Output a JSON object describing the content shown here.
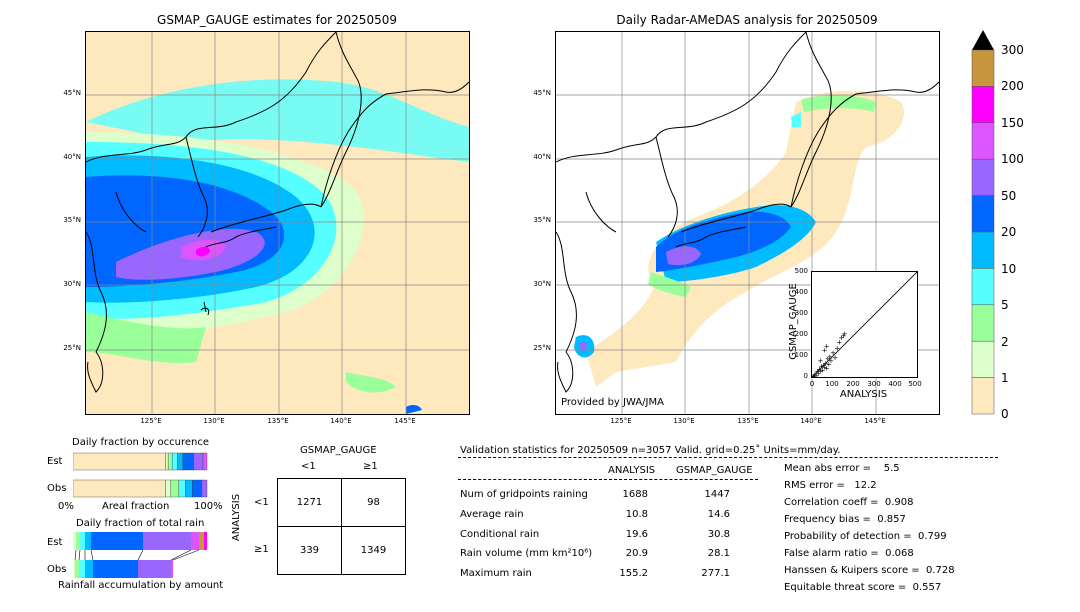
{
  "left_map": {
    "title": "GSMAP_GAUGE estimates for 20250509",
    "lat_labels": [
      "45°N",
      "40°N",
      "35°N",
      "30°N",
      "25°N"
    ],
    "lon_labels": [
      "125°E",
      "130°E",
      "135°E",
      "140°E",
      "145°E"
    ]
  },
  "right_map": {
    "title": "Daily Radar-AMeDAS analysis for 20250509",
    "lat_labels": [
      "45°N",
      "40°N",
      "35°N",
      "30°N",
      "25°N"
    ],
    "lon_labels": [
      "125°E",
      "130°E",
      "135°E",
      "140°E",
      "145°E"
    ],
    "credit": "Provided by JWA/JMA"
  },
  "colorbar": {
    "labels": [
      "300",
      "200",
      "150",
      "100",
      "50",
      "20",
      "10",
      "5",
      "2",
      "1",
      "0"
    ],
    "colors": [
      "#c8963c",
      "#ff00ff",
      "#dd55ff",
      "#9966ff",
      "#0066ff",
      "#00bbff",
      "#55ffff",
      "#99ff99",
      "#ddffcc",
      "#fde9bd"
    ]
  },
  "scatter": {
    "xlabel": "ANALYSIS",
    "ylabel": "GSMAP_GAUGE",
    "ticks": [
      "0",
      "100",
      "200",
      "300",
      "400",
      "500"
    ]
  },
  "occurrence": {
    "title": "Daily fraction by occurence",
    "rows": [
      "Est",
      "Obs"
    ],
    "axis_left": "0%",
    "axis_mid": "Areal fraction",
    "axis_right": "100%"
  },
  "total_rain": {
    "title": "Daily fraction of total rain",
    "rows": [
      "Est",
      "Obs"
    ],
    "footer": "Rainfall accumulation by amount"
  },
  "contingency": {
    "col_title": "GSMAP_GAUGE",
    "col_lt": "<1",
    "col_ge": "≥1",
    "row_title": "ANALYSIS",
    "row_lt": "<1",
    "row_ge": "≥1",
    "cells": [
      "1271",
      "98",
      "339",
      "1349"
    ]
  },
  "validation": {
    "header": "Validation statistics for 20250509  n=3057 Valid. grid=0.25˚ Units=mm/day.",
    "col_analysis": "ANALYSIS",
    "col_gsmap": "GSMAP_GAUGE",
    "rows": [
      {
        "label": "Num of gridpoints raining",
        "analysis": "1688",
        "gsmap": "1447"
      },
      {
        "label": "Average rain",
        "analysis": "10.8",
        "gsmap": "14.6"
      },
      {
        "label": "Conditional rain",
        "analysis": "19.6",
        "gsmap": "30.8"
      },
      {
        "label": "Rain volume (mm km²10⁶)",
        "analysis": "20.9",
        "gsmap": "28.1"
      },
      {
        "label": "Maximum rain",
        "analysis": "155.2",
        "gsmap": "277.1"
      }
    ],
    "scores": [
      "Mean abs error =    5.5",
      "RMS error =   12.2",
      "Correlation coeff =  0.908",
      "Frequency bias =  0.857",
      "Probability of detection =  0.799",
      "False alarm ratio =  0.068",
      "Hanssen & Kuipers score =  0.728",
      "Equitable threat score =  0.557"
    ]
  },
  "chart_data": {
    "type": "table",
    "title": "Validation statistics for 20250509",
    "n": 3057,
    "rows": [
      {
        "stat": "Num of gridpoints raining",
        "ANALYSIS": 1688,
        "GSMAP_GAUGE": 1447
      },
      {
        "stat": "Average rain",
        "ANALYSIS": 10.8,
        "GSMAP_GAUGE": 14.6
      },
      {
        "stat": "Conditional rain",
        "ANALYSIS": 19.6,
        "GSMAP_GAUGE": 30.8
      },
      {
        "stat": "Rain volume",
        "ANALYSIS": 20.9,
        "GSMAP_GAUGE": 28.1
      },
      {
        "stat": "Maximum rain",
        "ANALYSIS": 155.2,
        "GSMAP_GAUGE": 277.1
      }
    ],
    "contingency": {
      "analysis_lt1_gsmap_lt1": 1271,
      "analysis_lt1_gsmap_ge1": 98,
      "analysis_ge1_gsmap_lt1": 339,
      "analysis_ge1_gsmap_ge1": 1349
    },
    "occurrence_fractions": {
      "Est": [
        0.69,
        0.02,
        0.03,
        0.04,
        0.04,
        0.08,
        0.07,
        0.03
      ],
      "Obs": [
        0.69,
        0.04,
        0.06,
        0.05,
        0.05,
        0.07,
        0.04,
        0.0
      ]
    },
    "scatter_points": [
      [
        5,
        3
      ],
      [
        10,
        8
      ],
      [
        12,
        15
      ],
      [
        20,
        10
      ],
      [
        25,
        30
      ],
      [
        30,
        22
      ],
      [
        35,
        40
      ],
      [
        40,
        30
      ],
      [
        45,
        55
      ],
      [
        50,
        35
      ],
      [
        55,
        60
      ],
      [
        60,
        50
      ],
      [
        65,
        70
      ],
      [
        70,
        45
      ],
      [
        75,
        90
      ],
      [
        80,
        65
      ],
      [
        85,
        100
      ],
      [
        90,
        80
      ],
      [
        100,
        120
      ],
      [
        110,
        95
      ],
      [
        120,
        140
      ],
      [
        130,
        170
      ],
      [
        140,
        190
      ],
      [
        150,
        200
      ],
      [
        155,
        210
      ],
      [
        60,
        130
      ],
      [
        70,
        150
      ],
      [
        40,
        80
      ]
    ]
  }
}
